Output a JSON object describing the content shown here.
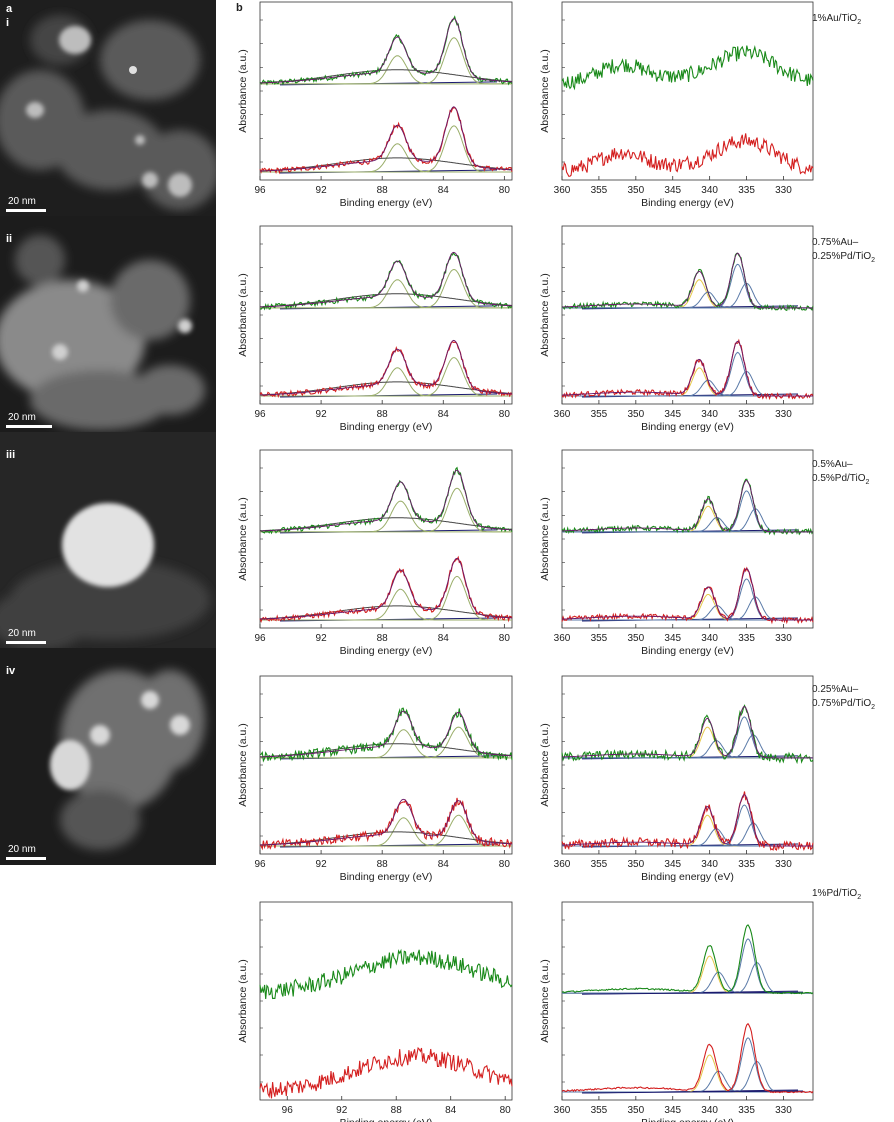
{
  "figure": {
    "panel_a_letter": "a",
    "panel_b_letter": "b",
    "scale_bar_label": "20 nm"
  },
  "tem_images": [
    {
      "label": "i",
      "scale_bar": "20 nm"
    },
    {
      "label": "ii",
      "scale_bar": "20 nm"
    },
    {
      "label": "iii",
      "scale_bar": "20 nm"
    },
    {
      "label": "iv",
      "scale_bar": "20 nm"
    }
  ],
  "samples": [
    {
      "line1": "1%Au/TiO",
      "sub": "2",
      "line2": ""
    },
    {
      "line1": "0.75%Au–",
      "line2": "0.25%Pd/TiO",
      "sub": "2"
    },
    {
      "line1": "0.5%Au–",
      "line2": "0.5%Pd/TiO",
      "sub": "2"
    },
    {
      "line1": "0.25%Au–",
      "line2": "0.75%Pd/TiO",
      "sub": "2"
    },
    {
      "line1": "1%Pd/TiO",
      "sub": "2",
      "line2": ""
    }
  ],
  "colors": {
    "green_trace": "#1a8a1a",
    "red_trace": "#d42020",
    "fit_envelope": "#6a1a6a",
    "au_component": "#9aae6a",
    "pd_component_a": "#e6c84a",
    "pd_component_b": "#5a7aa8",
    "background": "#1a1a6e",
    "broad_component": "#444444"
  },
  "chart_data": [
    {
      "type": "line",
      "panel": "Au4f-1%Au",
      "xlabel": "Binding energy (eV)",
      "ylabel": "Absorbance (a.u.)",
      "xlim": [
        96,
        79.5
      ],
      "xticks": [
        96,
        92,
        88,
        84,
        80
      ],
      "peaks": [
        {
          "center": 87.0,
          "height": 0.55
        },
        {
          "center": 83.3,
          "height": 0.9
        }
      ]
    },
    {
      "type": "line",
      "panel": "Pd3d-1%Au",
      "xlabel": "Binding energy (eV)",
      "ylabel": "Absorbance (a.u.)",
      "xlim": [
        360,
        326
      ],
      "xticks": [
        360,
        355,
        350,
        345,
        340,
        335,
        330
      ],
      "peaks": [
        {
          "center": 352,
          "height": 0.3
        },
        {
          "center": 335,
          "height": 0.55
        }
      ]
    },
    {
      "type": "line",
      "panel": "Au4f-0.75Au",
      "xlabel": "Binding energy (eV)",
      "ylabel": "Absorbance (a.u.)",
      "xlim": [
        96,
        79.5
      ],
      "xticks": [
        96,
        92,
        88,
        84,
        80
      ],
      "peaks": [
        {
          "center": 87.0,
          "height": 0.55
        },
        {
          "center": 83.3,
          "height": 0.75
        }
      ]
    },
    {
      "type": "line",
      "panel": "Pd3d-0.75Au",
      "xlabel": "Binding energy (eV)",
      "ylabel": "Absorbance (a.u.)",
      "xlim": [
        360,
        326
      ],
      "xticks": [
        360,
        355,
        350,
        345,
        340,
        335,
        330
      ],
      "peaks": [
        {
          "center": 341.4,
          "height": 0.55
        },
        {
          "center": 336.2,
          "height": 0.85
        }
      ]
    },
    {
      "type": "line",
      "panel": "Au4f-0.5Au",
      "xlabel": "Binding energy (eV)",
      "ylabel": "Absorbance (a.u.)",
      "xlim": [
        96,
        79.5
      ],
      "xticks": [
        96,
        92,
        88,
        84,
        80
      ],
      "peaks": [
        {
          "center": 86.8,
          "height": 0.6
        },
        {
          "center": 83.1,
          "height": 0.85
        }
      ]
    },
    {
      "type": "line",
      "panel": "Pd3d-0.5Au",
      "xlabel": "Binding energy (eV)",
      "ylabel": "Absorbance (a.u.)",
      "xlim": [
        360,
        326
      ],
      "xticks": [
        360,
        355,
        350,
        345,
        340,
        335,
        330
      ],
      "peaks": [
        {
          "center": 340.2,
          "height": 0.5
        },
        {
          "center": 335.0,
          "height": 0.8
        }
      ]
    },
    {
      "type": "line",
      "panel": "Au4f-0.25Au",
      "xlabel": "Binding energy (eV)",
      "ylabel": "Absorbance (a.u.)",
      "xlim": [
        96,
        79.5
      ],
      "xticks": [
        96,
        92,
        88,
        84,
        80
      ],
      "peaks": [
        {
          "center": 86.6,
          "height": 0.55
        },
        {
          "center": 83.0,
          "height": 0.6
        }
      ]
    },
    {
      "type": "line",
      "panel": "Pd3d-0.25Au",
      "xlabel": "Binding energy (eV)",
      "ylabel": "Absorbance (a.u.)",
      "xlim": [
        360,
        326
      ],
      "xticks": [
        360,
        355,
        350,
        345,
        340,
        335,
        330
      ],
      "peaks": [
        {
          "center": 340.3,
          "height": 0.6
        },
        {
          "center": 335.3,
          "height": 0.8
        }
      ]
    },
    {
      "type": "line",
      "panel": "Au4f-1%Pd",
      "xlabel": "Binding energy (eV)",
      "ylabel": "Absorbance (a.u.)",
      "xlim": [
        98,
        79.5
      ],
      "xticks": [
        96,
        92,
        88,
        84,
        80
      ],
      "peaks": [
        {
          "center": 86.5,
          "height": 0.5
        }
      ]
    },
    {
      "type": "line",
      "panel": "Pd3d-1%Pd",
      "xlabel": "Binding energy (eV)",
      "ylabel": "Absorbance (a.u.)",
      "xlim": [
        360,
        326
      ],
      "xticks": [
        360,
        355,
        350,
        345,
        340,
        335,
        330
      ],
      "peaks": [
        {
          "center": 340.0,
          "height": 0.65
        },
        {
          "center": 334.8,
          "height": 0.95
        }
      ]
    }
  ]
}
